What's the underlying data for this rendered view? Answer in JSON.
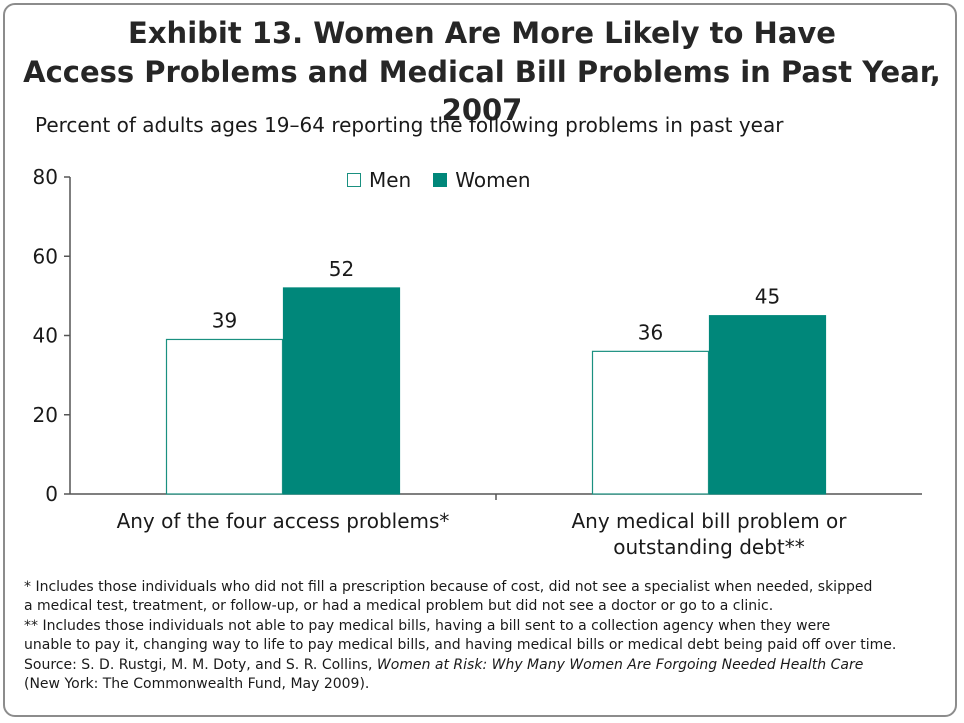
{
  "title_line1": "Exhibit 13. Women Are More Likely to Have",
  "title_line2": "Access Problems and Medical Bill Problems in Past Year, 2007",
  "subtitle": "Percent of adults ages 19–64 reporting the following problems in past year",
  "colors": {
    "men_fill": "#ffffff",
    "men_stroke": "#1a9080",
    "women_fill": "#00877a",
    "axis": "#555555"
  },
  "chart_data": {
    "type": "bar",
    "categories": [
      "Any of the four access problems*",
      "Any medical bill problem or outstanding debt**"
    ],
    "category_lines": [
      [
        "Any of the four access problems*"
      ],
      [
        "Any medical bill problem or",
        "outstanding debt**"
      ]
    ],
    "series": [
      {
        "name": "Men",
        "values": [
          39,
          36
        ]
      },
      {
        "name": "Women",
        "values": [
          52,
          45
        ]
      }
    ],
    "ylim": [
      0,
      80
    ],
    "yticks": [
      0,
      20,
      40,
      60,
      80
    ],
    "legend": "top-center",
    "grid": false,
    "data_labels": true
  },
  "notes": {
    "line1": "* Includes those individuals who did not fill a prescription because of cost, did not see a specialist when needed, skipped",
    "line2": "a medical test, treatment, or follow-up, or had a medical problem but did not see a doctor or go to a clinic.",
    "line3": "** Includes those individuals not able to pay medical bills, having a bill sent to a collection agency when they were",
    "line4": "unable to pay it, changing way to life to pay medical bills, and having medical bills or medical debt being paid off over time.",
    "source_prefix": "Source: S. D. Rustgi, M. M. Doty, and S. R. Collins, ",
    "source_title": "Women at Risk: Why Many Women Are Forgoing Needed Health Care",
    "source_suffix": "(New York: The Commonwealth Fund, May 2009)."
  }
}
